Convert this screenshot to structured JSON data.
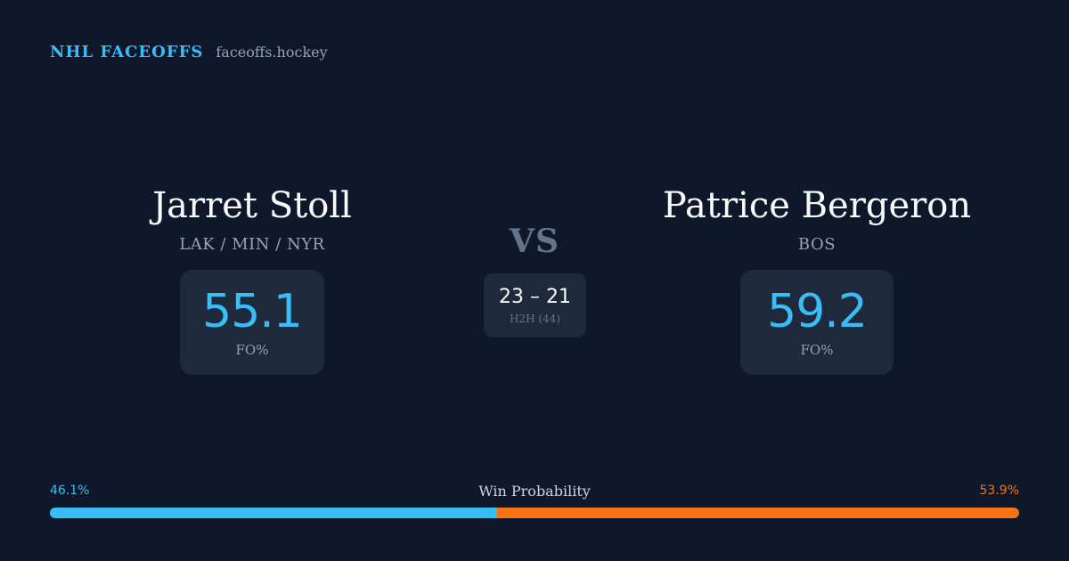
{
  "brand": {
    "title": "NHL FACEOFFS",
    "site": "faceoffs.hockey"
  },
  "players": [
    {
      "name": "Jarret Stoll",
      "teams": "LAK / MIN / NYR",
      "fo_value": "55.1",
      "fo_label": "FO%"
    },
    {
      "name": "Patrice Bergeron",
      "teams": "BOS",
      "fo_value": "59.2",
      "fo_label": "FO%"
    }
  ],
  "versus": "VS",
  "head_to_head": {
    "score": "23 – 21",
    "label": "H2H (44)"
  },
  "win_probability": {
    "title": "Win Probability",
    "left_label": "46.1%",
    "right_label": "53.9%",
    "left_fraction": 0.461,
    "left_color": "#38bdf8",
    "right_color": "#f97316"
  }
}
